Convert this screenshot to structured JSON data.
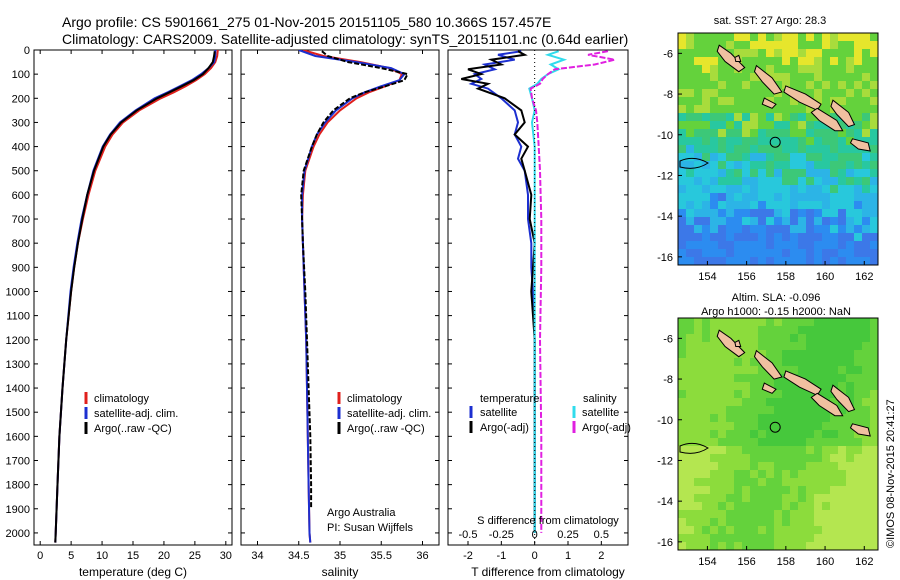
{
  "header": {
    "title_line1": "Argo profile: CS 5901661_275 01-Nov-2015 20151105_580 10.366S 157.457E",
    "title_line2": "Climatology: CARS2009. Satellite-adjusted climatology: synTS_20151101.nc (0.64d earlier)"
  },
  "colors": {
    "climatology": "#e0201c",
    "satellite": "#1c2fd0",
    "argo": "#000000",
    "sal_satellite": "#30dcec",
    "sal_argo": "#e020e0"
  },
  "chart_data": [
    {
      "id": "temperature",
      "type": "line",
      "xlabel": "temperature (deg C)",
      "ylabel": "",
      "xlim": [
        -1,
        31
      ],
      "ylim": [
        2050,
        0
      ],
      "xticks": [
        "0",
        "5",
        "10",
        "15",
        "20",
        "25",
        "30"
      ],
      "yticks": [
        "0",
        "100",
        "200",
        "300",
        "400",
        "500",
        "600",
        "700",
        "800",
        "900",
        "1000",
        "1100",
        "1200",
        "1300",
        "1400",
        "1500",
        "1600",
        "1700",
        "1800",
        "1900",
        "2000"
      ],
      "legend": [
        "climatology",
        "satellite-adj. clim.",
        "Argo(..raw -QC)"
      ],
      "series": [
        {
          "name": "climatology",
          "color": "#e0201c",
          "depth": [
            0,
            25,
            50,
            75,
            100,
            125,
            150,
            175,
            200,
            250,
            300,
            350,
            400,
            500,
            600,
            700,
            800,
            900,
            1000,
            1200,
            1400,
            1600,
            1800,
            2000,
            2040
          ],
          "values": [
            28.7,
            28.6,
            28.3,
            27.6,
            26.6,
            25.2,
            23.5,
            21.6,
            19.5,
            16.0,
            13.4,
            11.7,
            10.5,
            8.9,
            7.8,
            6.9,
            6.1,
            5.5,
            5.0,
            4.2,
            3.6,
            3.1,
            2.8,
            2.5,
            2.45
          ]
        },
        {
          "name": "satellite",
          "color": "#1c2fd0",
          "depth": [
            0,
            25,
            50,
            75,
            100,
            125,
            150,
            175,
            200,
            250,
            300,
            350,
            400,
            500,
            600,
            700,
            800,
            900,
            1000,
            1200,
            1400,
            1600,
            1800,
            2000,
            2040
          ],
          "values": [
            28.3,
            28.3,
            28.1,
            27.2,
            26.0,
            24.5,
            22.6,
            20.6,
            18.5,
            15.4,
            12.9,
            11.3,
            10.1,
            8.6,
            7.6,
            6.7,
            6.0,
            5.4,
            4.9,
            4.2,
            3.6,
            3.1,
            2.8,
            2.5,
            2.45
          ]
        },
        {
          "name": "argo",
          "color": "#000000",
          "depth": [
            5,
            25,
            50,
            75,
            100,
            125,
            150,
            175,
            200,
            250,
            300,
            350,
            400,
            500,
            600,
            700,
            800,
            900,
            1000,
            1200,
            1400,
            1600,
            1800,
            2000,
            2040
          ],
          "values": [
            28.2,
            28.1,
            27.9,
            27.2,
            26.3,
            24.8,
            22.9,
            20.9,
            18.9,
            15.6,
            13.1,
            11.4,
            10.2,
            8.7,
            7.6,
            6.8,
            6.1,
            5.5,
            5.0,
            4.2,
            3.6,
            3.1,
            2.8,
            2.5,
            2.45
          ]
        }
      ]
    },
    {
      "id": "salinity",
      "type": "line",
      "xlabel": "salinity",
      "ylabel": "",
      "xlim": [
        33.8,
        36.2
      ],
      "ylim": [
        2050,
        0
      ],
      "xticks": [
        "34",
        "34.5",
        "35",
        "35.5",
        "36"
      ],
      "legend": [
        "climatology",
        "satellite-adj. clim.",
        "Argo(..raw -QC)"
      ],
      "annotation": [
        "Argo Australia",
        "PI: Susan Wijffels"
      ],
      "series": [
        {
          "name": "climatology",
          "color": "#e0201c",
          "depth": [
            0,
            25,
            50,
            75,
            100,
            125,
            150,
            175,
            200,
            250,
            300,
            350,
            400,
            500,
            600,
            700,
            800,
            1000,
            1200,
            1400,
            1600,
            1800,
            2000,
            2040
          ],
          "values": [
            34.55,
            34.8,
            35.25,
            35.6,
            35.75,
            35.72,
            35.55,
            35.35,
            35.2,
            35.0,
            34.85,
            34.75,
            34.68,
            34.58,
            34.55,
            34.54,
            34.55,
            34.57,
            34.59,
            34.6,
            34.61,
            34.62,
            34.63,
            34.64
          ]
        },
        {
          "name": "satellite",
          "color": "#1c2fd0",
          "depth": [
            0,
            25,
            50,
            75,
            100,
            125,
            150,
            175,
            200,
            250,
            300,
            350,
            400,
            500,
            600,
            700,
            800,
            1000,
            1200,
            1400,
            1600,
            1800,
            2000,
            2040
          ],
          "values": [
            34.5,
            34.7,
            35.2,
            35.62,
            35.78,
            35.72,
            35.5,
            35.3,
            35.15,
            34.95,
            34.82,
            34.72,
            34.66,
            34.57,
            34.54,
            34.54,
            34.55,
            34.57,
            34.59,
            34.6,
            34.61,
            34.62,
            34.63,
            34.64
          ]
        },
        {
          "name": "argo",
          "color": "#000000",
          "depth": [
            5,
            25,
            50,
            75,
            100,
            125,
            150,
            175,
            200,
            250,
            300,
            350,
            400,
            500,
            600,
            700,
            800,
            1000,
            1200,
            1400,
            1600,
            1800,
            1900
          ],
          "values": [
            34.78,
            34.85,
            35.1,
            35.5,
            35.82,
            35.78,
            35.55,
            35.3,
            35.12,
            34.92,
            34.8,
            34.72,
            34.66,
            34.56,
            34.53,
            34.54,
            34.55,
            34.58,
            34.6,
            34.62,
            34.64,
            34.65,
            34.65
          ]
        }
      ]
    },
    {
      "id": "difference",
      "type": "line",
      "xlabel": "T difference from climatology",
      "xlabel_top": "S difference from climatology",
      "xlim": [
        -2.6,
        2.8
      ],
      "ylim": [
        2050,
        0
      ],
      "xticks": [
        "-2",
        "-1",
        "0",
        "1",
        "2"
      ],
      "xticks_top": [
        "-0.5",
        "-0.25",
        "0",
        "0.25",
        "0.5"
      ],
      "legend_left_title": "temperature",
      "legend_right_title": "salinity",
      "legend": [
        "satellite",
        "Argo(-adj)",
        "satellite",
        "Argo(-adj)"
      ],
      "series": [
        {
          "name": "T satellite",
          "color": "#1c2fd0",
          "depth": [
            5,
            20,
            40,
            60,
            80,
            100,
            120,
            140,
            160,
            200,
            250,
            300,
            350,
            400,
            450,
            500,
            600,
            700,
            800,
            900,
            1000,
            1200,
            1400,
            1600,
            1800,
            2000
          ],
          "values": [
            -0.4,
            -1.1,
            -0.6,
            -1.5,
            -1.2,
            -1.8,
            -1.6,
            -1.9,
            -1.4,
            -1.0,
            -0.6,
            -0.5,
            -0.6,
            -0.4,
            -0.5,
            -0.3,
            -0.2,
            -0.2,
            -0.1,
            -0.1,
            -0.05,
            0,
            0,
            0,
            0,
            0
          ]
        },
        {
          "name": "T argo",
          "color": "#000000",
          "depth": [
            5,
            20,
            40,
            60,
            80,
            100,
            120,
            140,
            160,
            200,
            250,
            300,
            350,
            400,
            450,
            500,
            600,
            700,
            800,
            900,
            1000,
            1200,
            1400,
            1600,
            1800,
            2000
          ],
          "values": [
            -0.5,
            -0.3,
            -1.3,
            -1.0,
            -2.0,
            -1.6,
            -2.2,
            -1.4,
            -1.7,
            -0.9,
            -0.4,
            -0.3,
            -0.6,
            -0.2,
            -0.4,
            -0.3,
            -0.1,
            -0.15,
            0,
            -0.05,
            -0.1,
            0,
            0,
            0,
            0,
            0
          ]
        },
        {
          "name": "S satellite",
          "color": "#30dcec",
          "depth": [
            5,
            20,
            40,
            60,
            80,
            100,
            120,
            140,
            160,
            200,
            250,
            300,
            400,
            500,
            700,
            900,
            1200,
            1600,
            2000
          ],
          "values": [
            0.18,
            0.1,
            0.22,
            0.12,
            0.18,
            0.1,
            0.05,
            0.02,
            -0.04,
            -0.02,
            0.0,
            -0.02,
            0.0,
            0.0,
            0.0,
            0.0,
            0.0,
            0.0,
            0.0
          ]
        },
        {
          "name": "S argo",
          "color": "#e020e0",
          "depth": [
            5,
            20,
            40,
            60,
            80,
            100,
            120,
            140,
            160,
            200,
            250,
            300,
            400,
            500,
            700,
            900,
            1200,
            1600,
            2000
          ],
          "values": [
            0.55,
            0.4,
            0.6,
            0.45,
            0.15,
            0.1,
            0.06,
            0.04,
            -0.03,
            -0.02,
            0.01,
            0.02,
            0.03,
            0.04,
            0.05,
            0.05,
            0.04,
            0.05,
            0.05
          ]
        }
      ]
    },
    {
      "id": "sst_map",
      "type": "heatmap",
      "title": "sat. SST: 27 Argo: 28.3",
      "xticks": [
        "154",
        "156",
        "158",
        "160",
        "162"
      ],
      "yticks": [
        "-6",
        "-8",
        "-10",
        "-12",
        "-14",
        "-16"
      ],
      "marker_lon": 157.457,
      "marker_lat": -10.366
    },
    {
      "id": "sla_map",
      "type": "heatmap",
      "title_line1": "Altim. SLA: -0.096",
      "title_line2": "Argo h1000: -0.15 h2000: NaN",
      "xticks": [
        "154",
        "156",
        "158",
        "160",
        "162"
      ],
      "yticks": [
        "-6",
        "-8",
        "-10",
        "-12",
        "-14",
        "-16"
      ],
      "marker_lon": 157.457,
      "marker_lat": -10.366
    }
  ],
  "footer": {
    "credit": "©IMOS 08-Nov-2015 20:41:27"
  }
}
